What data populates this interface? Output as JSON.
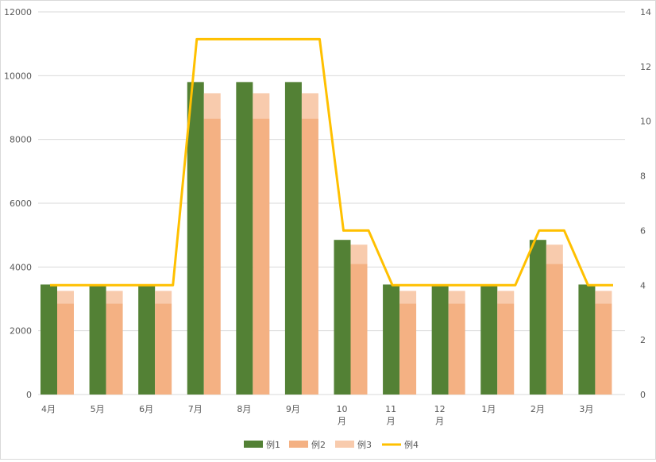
{
  "chart_data": {
    "type": "bar",
    "categories": [
      "4月",
      "5月",
      "6月",
      "7月",
      "8月",
      "9月",
      "10月",
      "11月",
      "12月",
      "1月",
      "2月",
      "3月"
    ],
    "series": [
      {
        "name": "例1",
        "kind": "bar",
        "axis": "left",
        "color": "#538135",
        "values": [
          3450,
          3450,
          3450,
          9800,
          9800,
          9800,
          4850,
          3450,
          3450,
          3450,
          4850,
          3450
        ]
      },
      {
        "name": "例2",
        "kind": "stacked-bar",
        "axis": "left",
        "color": "#f4b183",
        "values": [
          2850,
          2850,
          2850,
          8650,
          8650,
          8650,
          4100,
          2850,
          2850,
          2850,
          4100,
          2850
        ]
      },
      {
        "name": "例3",
        "kind": "stacked-bar",
        "axis": "left",
        "color": "#f8cbad",
        "values": [
          400,
          400,
          400,
          800,
          800,
          800,
          600,
          400,
          400,
          400,
          600,
          400
        ]
      },
      {
        "name": "例4",
        "kind": "line",
        "axis": "right",
        "color": "#ffc000",
        "values": [
          4,
          4,
          4,
          13,
          13,
          13,
          6,
          4,
          4,
          4,
          6,
          4
        ]
      }
    ],
    "y_left": {
      "min": 0,
      "max": 12000,
      "ticks": [
        "0",
        "2000",
        "4000",
        "6000",
        "8000",
        "10000",
        "12000"
      ]
    },
    "y_right": {
      "min": 0,
      "max": 14,
      "ticks": [
        "0",
        "2",
        "4",
        "6",
        "8",
        "10",
        "12",
        "14"
      ]
    },
    "grid": true,
    "legend_position": "bottom"
  }
}
